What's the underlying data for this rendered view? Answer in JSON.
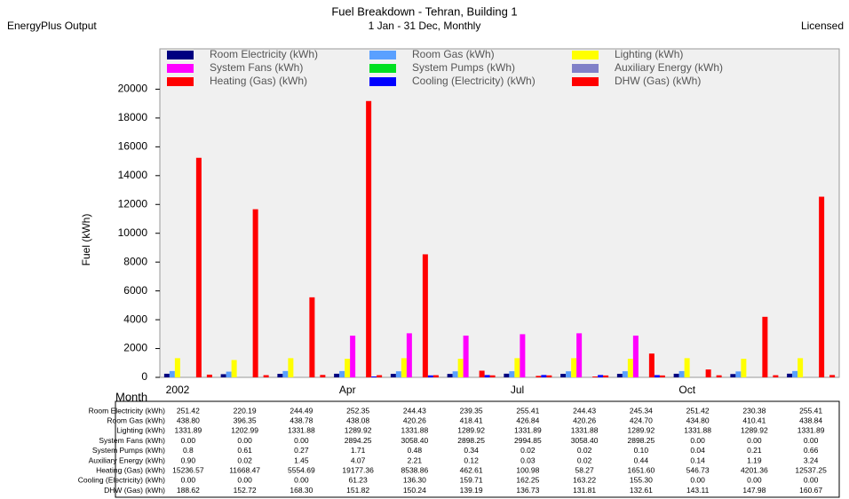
{
  "chart_data": {
    "type": "bar",
    "title": "Fuel Breakdown - Tehran, Building 1",
    "subtitle": "1 Jan - 31 Dec, Monthly",
    "left_note": "EnergyPlus Output",
    "right_note": "Licensed",
    "y_label": "Fuel (kWh)",
    "x_label": "Month",
    "categories": [
      "2002",
      null,
      null,
      "Apr",
      null,
      null,
      "Jul",
      null,
      null,
      "Oct",
      null,
      null
    ],
    "ylim": [
      0,
      22800
    ],
    "yticks": [
      0,
      2000,
      4000,
      6000,
      8000,
      10000,
      12000,
      14000,
      16000,
      18000,
      20000
    ],
    "series": [
      {
        "name": "Room Electricity (kWh)",
        "color": "#000080",
        "values": [
          251.42,
          220.19,
          244.49,
          252.35,
          244.43,
          239.35,
          255.41,
          244.43,
          245.34,
          251.42,
          230.38,
          255.41
        ],
        "value_labels": [
          "251.42",
          "220.19",
          "244.49",
          "252.35",
          "244.43",
          "239.35",
          "255.41",
          "244.43",
          "245.34",
          "251.42",
          "230.38",
          "255.41"
        ]
      },
      {
        "name": "Room Gas (kWh)",
        "color": "#5aa0ff",
        "values": [
          438.8,
          396.35,
          438.78,
          438.08,
          420.26,
          418.41,
          426.84,
          420.26,
          424.7,
          434.8,
          410.41,
          438.84
        ],
        "value_labels": [
          "438.80",
          "396.35",
          "438.78",
          "438.08",
          "420.26",
          "418.41",
          "426.84",
          "420.26",
          "424.70",
          "434.80",
          "410.41",
          "438.84"
        ]
      },
      {
        "name": "Lighting (kWh)",
        "color": "#ffff00",
        "values": [
          1331.89,
          1202.99,
          1331.88,
          1289.92,
          1331.88,
          1289.92,
          1331.89,
          1331.88,
          1289.92,
          1331.88,
          1289.92,
          1331.89
        ],
        "value_labels": [
          "1331.89",
          "1202.99",
          "1331.88",
          "1289.92",
          "1331.88",
          "1289.92",
          "1331.89",
          "1331.88",
          "1289.92",
          "1331.88",
          "1289.92",
          "1331.89"
        ]
      },
      {
        "name": "System Fans (kWh)",
        "color": "#ff00ff",
        "values": [
          0,
          0,
          0,
          2894.25,
          3058.4,
          2898.25,
          2994.85,
          3058.4,
          2898.25,
          0,
          0,
          0
        ],
        "value_labels": [
          "0.00",
          "0.00",
          "0.00",
          "2894.25",
          "3058.40",
          "2898.25",
          "2994.85",
          "3058.40",
          "2898.25",
          "0.00",
          "0.00",
          "0.00"
        ]
      },
      {
        "name": "System Pumps (kWh)",
        "color": "#00e020",
        "values": [
          0.8,
          0.61,
          0.27,
          1.71,
          0.48,
          0.34,
          0.02,
          0.02,
          0.1,
          0.04,
          0.21,
          0.66
        ],
        "value_labels": [
          "0.8",
          "0.61",
          "0.27",
          "1.71",
          "0.48",
          "0.34",
          "0.02",
          "0.02",
          "0.10",
          "0.04",
          "0.21",
          "0.66"
        ]
      },
      {
        "name": "Auxiliary Energy (kWh)",
        "color": "#8080c8",
        "values": [
          0.9,
          0.02,
          1.45,
          4.07,
          2.21,
          0.12,
          0.03,
          0.02,
          0.44,
          0.14,
          1.19,
          3.24
        ],
        "value_labels": [
          "0.90",
          "0.02",
          "1.45",
          "4.07",
          "2.21",
          "0.12",
          "0.03",
          "0.02",
          "0.44",
          "0.14",
          "1.19",
          "3.24"
        ]
      },
      {
        "name": "Heating (Gas) (kWh)",
        "color": "#ff0000",
        "values": [
          15236.57,
          11668.47,
          5554.69,
          19177.36,
          8538.86,
          462.61,
          100.98,
          58.27,
          1651.6,
          546.73,
          4201.36,
          12537.25
        ],
        "value_labels": [
          "15236.57",
          "11668.47",
          "5554.69",
          "19177.36",
          "8538.86",
          "462.61",
          "100.98",
          "58.27",
          "1651.60",
          "546.73",
          "4201.36",
          "12537.25"
        ]
      },
      {
        "name": "Cooling (Electricity) (kWh)",
        "color": "#0000ff",
        "values": [
          0,
          0,
          0,
          61.23,
          136.3,
          159.71,
          162.25,
          163.22,
          155.3,
          0,
          0,
          0
        ],
        "value_labels": [
          "0.00",
          "0.00",
          "0.00",
          "61.23",
          "136.30",
          "159.71",
          "162.25",
          "163.22",
          "155.30",
          "0.00",
          "0.00",
          "0.00"
        ]
      },
      {
        "name": "DHW (Gas) (kWh)",
        "color": "#ff0000",
        "values": [
          188.62,
          152.72,
          168.3,
          151.82,
          150.24,
          139.19,
          136.73,
          131.81,
          132.61,
          143.11,
          147.98,
          160.67
        ],
        "value_labels": [
          "188.62",
          "152.72",
          "168.30",
          "151.82",
          "150.24",
          "139.19",
          "136.73",
          "131.81",
          "132.61",
          "143.11",
          "147.98",
          "160.67"
        ]
      }
    ]
  }
}
